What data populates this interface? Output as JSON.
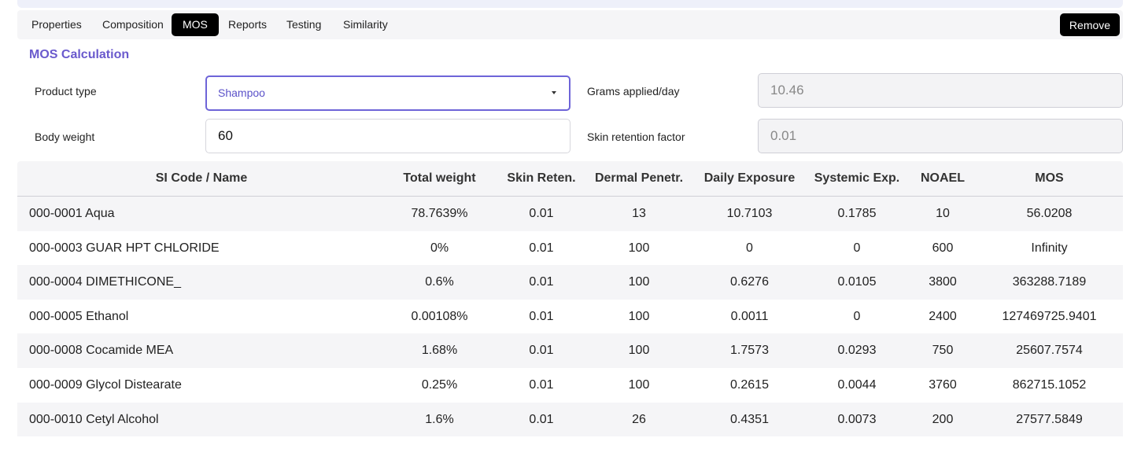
{
  "tabs": [
    {
      "label": "Properties"
    },
    {
      "label": "Composition"
    },
    {
      "label": "MOS"
    },
    {
      "label": "Reports"
    },
    {
      "label": "Testing"
    },
    {
      "label": "Similarity"
    }
  ],
  "active_tab": "MOS",
  "remove_label": "Remove",
  "section_title": "MOS Calculation",
  "form": {
    "product_type_label": "Product type",
    "product_type_value": "Shampoo",
    "body_weight_label": "Body weight",
    "body_weight_value": "60",
    "grams_label": "Grams applied/day",
    "grams_value": "10.46",
    "skin_retention_label": "Skin retention factor",
    "skin_retention_value": "0.01"
  },
  "table": {
    "headers": [
      "SI Code / Name",
      "Total weight",
      "Skin Reten.",
      "Dermal Penetr.",
      "Daily Exposure",
      "Systemic Exp.",
      "NOAEL",
      "MOS"
    ],
    "rows": [
      [
        "000-0001 Aqua",
        "78.7639%",
        "0.01",
        "13",
        "10.7103",
        "0.1785",
        "10",
        "56.0208"
      ],
      [
        "000-0003 GUAR HPT CHLORIDE",
        "0%",
        "0.01",
        "100",
        "0",
        "0",
        "600",
        "Infinity"
      ],
      [
        "000-0004 DIMETHICONE_",
        "0.6%",
        "0.01",
        "100",
        "0.6276",
        "0.0105",
        "3800",
        "363288.7189"
      ],
      [
        "000-0005 Ethanol",
        "0.00108%",
        "0.01",
        "100",
        "0.0011",
        "0",
        "2400",
        "127469725.9401"
      ],
      [
        "000-0008 Cocamide MEA",
        "1.68%",
        "0.01",
        "100",
        "1.7573",
        "0.0293",
        "750",
        "25607.7574"
      ],
      [
        "000-0009 Glycol Distearate",
        "0.25%",
        "0.01",
        "100",
        "0.2615",
        "0.0044",
        "3760",
        "862715.1052"
      ],
      [
        "000-0010 Cetyl Alcohol",
        "1.6%",
        "0.01",
        "26",
        "0.4351",
        "0.0073",
        "200",
        "27577.5849"
      ]
    ]
  },
  "colors": {
    "accent": "#6e64d8",
    "active_tab_bg": "#000000"
  },
  "icons": {
    "dropdown": "caret-down-icon"
  }
}
